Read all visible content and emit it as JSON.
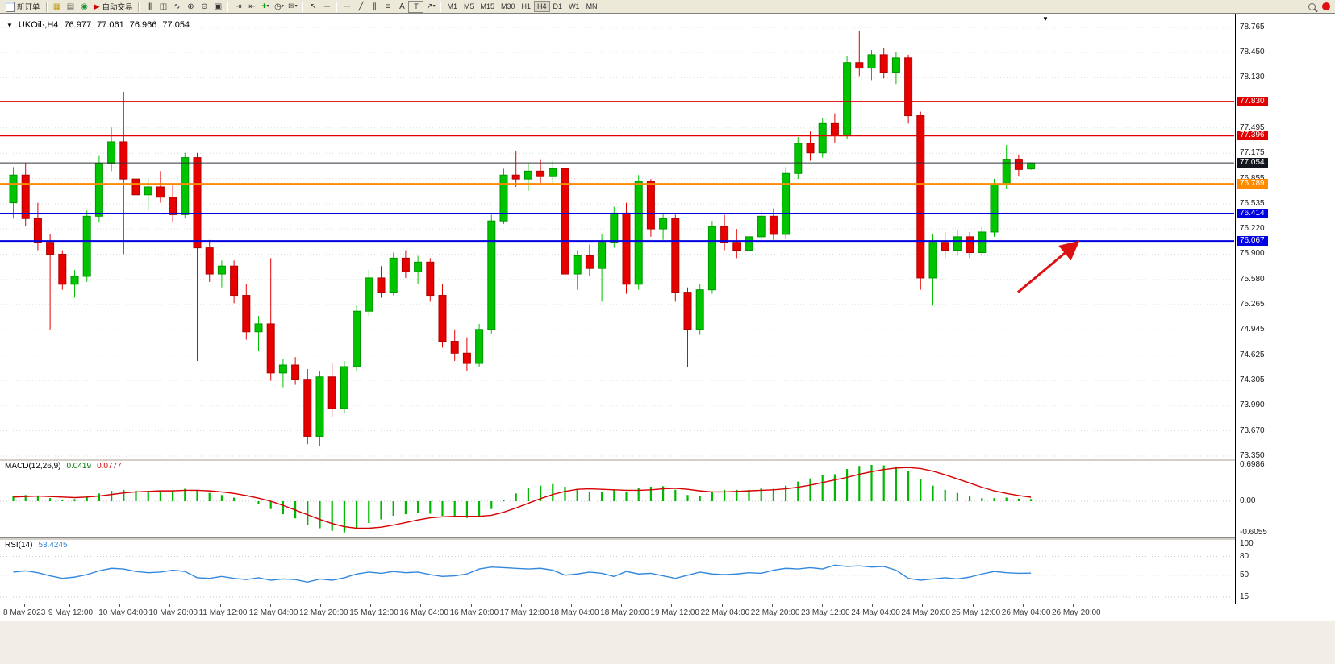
{
  "toolbar": {
    "new_order_label": "新订单",
    "auto_trading_label": "自动交易",
    "timeframes": [
      "M1",
      "M5",
      "M15",
      "M30",
      "H1",
      "H4",
      "D1",
      "W1",
      "MN"
    ],
    "active_timeframe": "H4"
  },
  "icons": {
    "charts_stack": "▦",
    "print": "▤",
    "community": "◉",
    "auto_trading": "▶",
    "bar_chart": "|||",
    "candlestick_chart": "◫",
    "line_chart": "∿",
    "zoom_in": "⊕",
    "zoom_out": "⊖",
    "tile_windows": "▣",
    "auto_scroll": "⇥",
    "chart_shift": "⇤",
    "indicators_plus": "+",
    "caret": "▾",
    "periods_clock": "◷",
    "templates": "✉",
    "cursor": "↖",
    "crosshair": "┼",
    "horizontal_line": "─",
    "trendline": "╱",
    "channel": "∥",
    "fibonacci": "≡",
    "text": "A",
    "text_label": "T",
    "arrows": "↗",
    "symbol_caret": "▼",
    "shift_marker": "▼"
  },
  "chart_header": {
    "symbol_period": "UKOil·,H4",
    "open": "76.977",
    "high": "77.061",
    "low": "76.966",
    "close": "77.054"
  },
  "indicators": {
    "macd": {
      "title": "MACD(12,26,9)",
      "value1": "0.0419",
      "value2": "0.0777",
      "axis": [
        "0.6986",
        "0.00",
        "-0.6055"
      ]
    },
    "rsi": {
      "title": "RSI(14)",
      "value": "53.4245",
      "axis": [
        "100",
        "80",
        "50",
        "15"
      ]
    }
  },
  "price_axis": [
    {
      "label": "78.765",
      "type": "normal"
    },
    {
      "label": "78.450",
      "type": "normal"
    },
    {
      "label": "78.130",
      "type": "normal"
    },
    {
      "label": "77.830",
      "type": "resistance"
    },
    {
      "label": "77.495",
      "type": "normal"
    },
    {
      "label": "77.396",
      "type": "resistance"
    },
    {
      "label": "77.175",
      "type": "normal"
    },
    {
      "label": "77.054",
      "type": "current"
    },
    {
      "label": "76.855",
      "type": "normal"
    },
    {
      "label": "76.789",
      "type": "pivot"
    },
    {
      "label": "76.535",
      "type": "normal"
    },
    {
      "label": "76.414",
      "type": "support"
    },
    {
      "label": "76.220",
      "type": "normal"
    },
    {
      "label": "76.067",
      "type": "support"
    },
    {
      "label": "75.900",
      "type": "normal"
    },
    {
      "label": "75.580",
      "type": "normal"
    },
    {
      "label": "75.265",
      "type": "normal"
    },
    {
      "label": "74.945",
      "type": "normal"
    },
    {
      "label": "74.625",
      "type": "normal"
    },
    {
      "label": "74.305",
      "type": "normal"
    },
    {
      "label": "73.990",
      "type": "normal"
    },
    {
      "label": "73.670",
      "type": "normal"
    },
    {
      "label": "73.350",
      "type": "normal"
    }
  ],
  "colors": {
    "bull": "#00C400",
    "bull_border": "#009400",
    "bear": "#E60000",
    "bear_border": "#B00000",
    "macd_histogram": "#00B800",
    "macd_signal": "#D40000",
    "rsi_line": "#3388DD",
    "arrow": "#DD1111",
    "resistance": "#E00000",
    "support": "#0000E0",
    "pivot": "#FF8A00",
    "current_line": "#30343C"
  },
  "chart_data": {
    "type": "candlestick",
    "symbol": "UKOil",
    "period": "H4",
    "price_range": {
      "min": 73.35,
      "max": 78.765
    },
    "hlines": [
      {
        "price": 77.83,
        "color": "#E00000",
        "width": 1.4,
        "role": "resistance"
      },
      {
        "price": 77.396,
        "color": "#E00000",
        "width": 1.4,
        "role": "resistance"
      },
      {
        "price": 76.789,
        "color": "#FF8A00",
        "width": 2,
        "role": "pivot"
      },
      {
        "price": 76.414,
        "color": "#0000E0",
        "width": 2,
        "role": "support"
      },
      {
        "price": 76.067,
        "color": "#0000E0",
        "width": 2,
        "role": "support"
      },
      {
        "price": 77.054,
        "color": "#30343C",
        "width": 1,
        "role": "current-price"
      }
    ],
    "annotation_arrow": {
      "from": [
        1262,
        75.42
      ],
      "to": [
        1336,
        76.05
      ]
    },
    "x_labels": [
      "8 May 2023",
      "9 May 12:00",
      "10 May 04:00",
      "10 May 20:00",
      "11 May 12:00",
      "12 May 04:00",
      "12 May 20:00",
      "15 May 12:00",
      "16 May 04:00",
      "16 May 20:00",
      "17 May 12:00",
      "18 May 04:00",
      "18 May 20:00",
      "19 May 12:00",
      "22 May 04:00",
      "22 May 20:00",
      "23 May 12:00",
      "24 May 04:00",
      "24 May 20:00",
      "25 May 12:00",
      "26 May 04:00",
      "26 May 20:00"
    ],
    "candles": [
      [
        76.55,
        77.0,
        76.35,
        76.9
      ],
      [
        76.9,
        77.05,
        76.25,
        76.35
      ],
      [
        76.35,
        76.55,
        75.95,
        76.05
      ],
      [
        76.05,
        76.15,
        74.95,
        75.9
      ],
      [
        75.9,
        75.95,
        75.45,
        75.52
      ],
      [
        75.52,
        75.7,
        75.35,
        75.62
      ],
      [
        75.62,
        76.45,
        75.55,
        76.38
      ],
      [
        76.38,
        77.15,
        76.3,
        77.05
      ],
      [
        77.05,
        77.5,
        76.95,
        77.32
      ],
      [
        77.32,
        77.95,
        75.9,
        76.85
      ],
      [
        76.85,
        77.0,
        76.55,
        76.65
      ],
      [
        76.65,
        76.85,
        76.45,
        76.75
      ],
      [
        76.75,
        76.95,
        76.55,
        76.62
      ],
      [
        76.62,
        76.8,
        76.3,
        76.4
      ],
      [
        76.4,
        77.18,
        76.35,
        77.12
      ],
      [
        77.12,
        77.18,
        74.55,
        75.98
      ],
      [
        75.98,
        76.08,
        75.55,
        75.65
      ],
      [
        75.65,
        75.82,
        75.48,
        75.75
      ],
      [
        75.75,
        75.82,
        75.28,
        75.38
      ],
      [
        75.38,
        75.52,
        74.82,
        74.92
      ],
      [
        74.92,
        75.12,
        74.68,
        75.02
      ],
      [
        75.02,
        75.85,
        74.3,
        74.4
      ],
      [
        74.4,
        74.58,
        74.22,
        74.5
      ],
      [
        74.5,
        74.6,
        74.25,
        74.32
      ],
      [
        74.32,
        74.45,
        73.5,
        73.6
      ],
      [
        73.6,
        74.42,
        73.48,
        74.35
      ],
      [
        74.35,
        74.52,
        73.85,
        73.95
      ],
      [
        73.95,
        74.55,
        73.9,
        74.48
      ],
      [
        74.48,
        75.25,
        74.42,
        75.18
      ],
      [
        75.18,
        75.7,
        75.12,
        75.6
      ],
      [
        75.6,
        75.75,
        75.35,
        75.42
      ],
      [
        75.42,
        75.92,
        75.38,
        75.85
      ],
      [
        75.85,
        75.95,
        75.6,
        75.68
      ],
      [
        75.68,
        75.88,
        75.52,
        75.8
      ],
      [
        75.8,
        75.85,
        75.3,
        75.38
      ],
      [
        75.38,
        75.52,
        74.72,
        74.8
      ],
      [
        74.8,
        74.95,
        74.55,
        74.65
      ],
      [
        74.65,
        74.85,
        74.42,
        74.52
      ],
      [
        74.52,
        75.02,
        74.48,
        74.95
      ],
      [
        74.95,
        76.4,
        74.9,
        76.32
      ],
      [
        76.32,
        76.98,
        76.28,
        76.9
      ],
      [
        76.9,
        77.2,
        76.75,
        76.85
      ],
      [
        76.85,
        77.05,
        76.7,
        76.95
      ],
      [
        76.95,
        77.1,
        76.8,
        76.88
      ],
      [
        76.88,
        77.08,
        76.78,
        76.98
      ],
      [
        76.98,
        77.02,
        75.55,
        75.65
      ],
      [
        75.65,
        75.95,
        75.45,
        75.88
      ],
      [
        75.88,
        76.02,
        75.62,
        75.72
      ],
      [
        75.72,
        76.15,
        75.3,
        76.05
      ],
      [
        76.05,
        76.5,
        75.98,
        76.42
      ],
      [
        76.42,
        76.55,
        75.4,
        75.52
      ],
      [
        75.52,
        76.9,
        75.45,
        76.82
      ],
      [
        76.82,
        76.85,
        76.12,
        76.22
      ],
      [
        76.22,
        76.42,
        76.08,
        76.35
      ],
      [
        76.35,
        76.4,
        75.3,
        75.42
      ],
      [
        75.42,
        75.48,
        74.48,
        74.95
      ],
      [
        74.95,
        75.52,
        74.88,
        75.45
      ],
      [
        75.45,
        76.32,
        75.4,
        76.25
      ],
      [
        76.25,
        76.4,
        75.95,
        76.05
      ],
      [
        76.05,
        76.22,
        75.85,
        75.95
      ],
      [
        75.95,
        76.18,
        75.88,
        76.12
      ],
      [
        76.12,
        76.45,
        76.05,
        76.38
      ],
      [
        76.38,
        76.48,
        76.08,
        76.15
      ],
      [
        76.15,
        77.0,
        76.1,
        76.92
      ],
      [
        76.92,
        77.38,
        76.85,
        77.3
      ],
      [
        77.3,
        77.45,
        77.08,
        77.18
      ],
      [
        77.18,
        77.62,
        77.12,
        77.55
      ],
      [
        77.55,
        77.68,
        77.3,
        77.4
      ],
      [
        77.4,
        78.4,
        77.35,
        78.32
      ],
      [
        78.32,
        78.72,
        78.15,
        78.25
      ],
      [
        78.25,
        78.48,
        78.1,
        78.42
      ],
      [
        78.42,
        78.5,
        78.12,
        78.2
      ],
      [
        78.2,
        78.45,
        78.05,
        78.38
      ],
      [
        78.38,
        78.42,
        77.55,
        77.65
      ],
      [
        77.65,
        77.7,
        75.45,
        75.6
      ],
      [
        75.6,
        76.15,
        75.25,
        76.05
      ],
      [
        76.05,
        76.18,
        75.85,
        75.95
      ],
      [
        75.95,
        76.2,
        75.88,
        76.12
      ],
      [
        76.12,
        76.18,
        75.85,
        75.92
      ],
      [
        75.92,
        76.25,
        75.88,
        76.18
      ],
      [
        76.18,
        76.85,
        76.12,
        76.78
      ],
      [
        76.78,
        77.28,
        76.72,
        77.1
      ],
      [
        77.1,
        77.16,
        76.88,
        76.97
      ],
      [
        76.977,
        77.061,
        76.966,
        77.054
      ]
    ],
    "macd": {
      "range": [
        -0.6055,
        0.6986
      ],
      "histogram": [
        0.1,
        0.12,
        0.1,
        0.06,
        0.03,
        0.04,
        0.09,
        0.15,
        0.2,
        0.22,
        0.2,
        0.19,
        0.2,
        0.21,
        0.24,
        0.22,
        0.16,
        0.12,
        0.07,
        0.0,
        -0.05,
        -0.15,
        -0.25,
        -0.33,
        -0.45,
        -0.52,
        -0.57,
        -0.6,
        -0.52,
        -0.42,
        -0.35,
        -0.28,
        -0.25,
        -0.22,
        -0.24,
        -0.28,
        -0.3,
        -0.32,
        -0.28,
        -0.15,
        0.02,
        0.15,
        0.25,
        0.3,
        0.33,
        0.28,
        0.22,
        0.18,
        0.18,
        0.22,
        0.18,
        0.25,
        0.28,
        0.29,
        0.22,
        0.12,
        0.1,
        0.18,
        0.22,
        0.22,
        0.22,
        0.25,
        0.24,
        0.3,
        0.38,
        0.44,
        0.5,
        0.52,
        0.62,
        0.68,
        0.7,
        0.69,
        0.67,
        0.58,
        0.42,
        0.3,
        0.22,
        0.16,
        0.1,
        0.06,
        0.06,
        0.07,
        0.05,
        0.0419
      ],
      "signal": [
        0.08,
        0.09,
        0.1,
        0.09,
        0.08,
        0.07,
        0.08,
        0.1,
        0.13,
        0.16,
        0.18,
        0.19,
        0.2,
        0.2,
        0.21,
        0.21,
        0.2,
        0.18,
        0.15,
        0.11,
        0.06,
        0.0,
        -0.08,
        -0.17,
        -0.26,
        -0.35,
        -0.43,
        -0.49,
        -0.52,
        -0.52,
        -0.5,
        -0.46,
        -0.41,
        -0.36,
        -0.32,
        -0.3,
        -0.29,
        -0.29,
        -0.29,
        -0.27,
        -0.21,
        -0.13,
        -0.04,
        0.05,
        0.13,
        0.19,
        0.23,
        0.24,
        0.23,
        0.22,
        0.21,
        0.21,
        0.22,
        0.24,
        0.25,
        0.23,
        0.2,
        0.18,
        0.18,
        0.19,
        0.2,
        0.21,
        0.22,
        0.24,
        0.27,
        0.31,
        0.36,
        0.41,
        0.46,
        0.52,
        0.57,
        0.61,
        0.64,
        0.65,
        0.63,
        0.58,
        0.51,
        0.43,
        0.35,
        0.27,
        0.2,
        0.15,
        0.11,
        0.0777
      ]
    },
    "rsi": {
      "levels": [
        80,
        50,
        15
      ],
      "values": [
        55,
        57,
        54,
        49,
        45,
        47,
        51,
        57,
        61,
        60,
        56,
        54,
        55,
        58,
        56,
        46,
        45,
        48,
        45,
        43,
        46,
        42,
        44,
        43,
        39,
        44,
        42,
        46,
        52,
        55,
        53,
        56,
        54,
        55,
        51,
        48,
        49,
        52,
        60,
        63,
        62,
        61,
        60,
        61,
        58,
        50,
        52,
        55,
        53,
        48,
        56,
        52,
        53,
        49,
        45,
        50,
        55,
        52,
        51,
        52,
        54,
        53,
        58,
        61,
        60,
        62,
        60,
        66,
        64,
        65,
        63,
        64,
        58,
        45,
        42,
        44,
        46,
        44,
        47,
        52,
        56,
        54,
        53,
        53.42
      ]
    }
  }
}
